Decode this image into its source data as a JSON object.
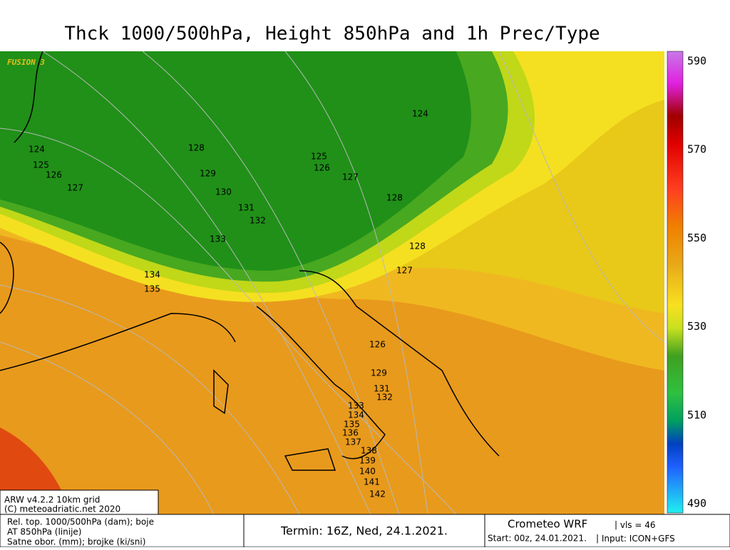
{
  "header": {
    "title": "Thck 1000/500hPa, Height 850hPa and 1h Prec/Type"
  },
  "map": {
    "model_tag": "FUSION 3",
    "contour_labels": [
      "124",
      "125",
      "126",
      "127",
      "128",
      "129",
      "130",
      "131",
      "132",
      "133",
      "134",
      "135",
      "124",
      "125",
      "126",
      "127",
      "128",
      "128",
      "127",
      "126",
      "129",
      "131",
      "132",
      "133",
      "134",
      "135",
      "136",
      "137",
      "138",
      "139",
      "140",
      "141",
      "142"
    ]
  },
  "colorbar": {
    "ticks": [
      590,
      570,
      550,
      530,
      510,
      490
    ]
  },
  "inset": {
    "line1": "ARW v4.2.2 10km grid",
    "line2": "(C) meteoadriatic.net 2020"
  },
  "footer": {
    "legend_lines": [
      "Rel. top. 1000/500hPa (dam); boje",
      "AT 850hPa (linije)",
      "Satne obor. (mm); brojke (ki/sni)"
    ],
    "run": "Termin: 16Z, Ned, 24.1.2021.",
    "brand": "Crometeo WRF",
    "vis": "vls = 46",
    "start": "Start: 00z, 24.01.2021.",
    "input": "Input: ICON+GFS"
  }
}
